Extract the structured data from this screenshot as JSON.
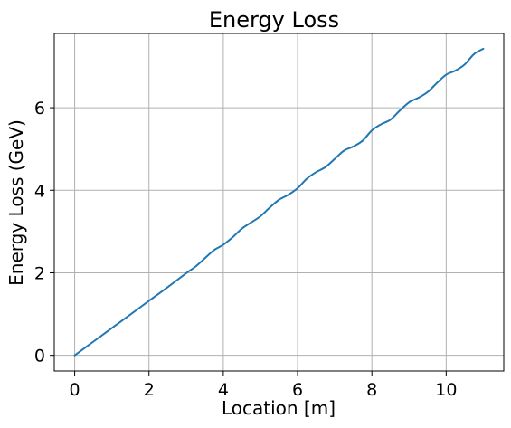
{
  "chart_data": {
    "type": "line",
    "title": "Energy Loss",
    "xlabel": "Location [m]",
    "ylabel": "Energy Loss (GeV)",
    "xlim": [
      -0.55,
      11.55
    ],
    "ylim": [
      -0.38,
      7.8
    ],
    "xticks": [
      0,
      2,
      4,
      6,
      8,
      10
    ],
    "yticks": [
      0,
      2,
      4,
      6
    ],
    "xtick_labels": [
      "0",
      "2",
      "4",
      "6",
      "8",
      "10"
    ],
    "ytick_labels": [
      "0",
      "2",
      "4",
      "6"
    ],
    "grid": true,
    "series": [
      {
        "color": "#1f77b4",
        "x": [
          0,
          0.5,
          1,
          1.5,
          2,
          2.5,
          3,
          3.25,
          3.5,
          3.75,
          4,
          4.25,
          4.5,
          4.75,
          5,
          5.25,
          5.5,
          5.75,
          6,
          6.25,
          6.5,
          6.75,
          7,
          7.25,
          7.5,
          7.75,
          8,
          8.25,
          8.5,
          8.75,
          9,
          9.25,
          9.5,
          9.75,
          10,
          10.25,
          10.5,
          10.75,
          11
        ],
        "y": [
          0,
          0.33,
          0.66,
          0.99,
          1.32,
          1.65,
          1.99,
          2.15,
          2.35,
          2.55,
          2.68,
          2.86,
          3.07,
          3.22,
          3.37,
          3.58,
          3.77,
          3.89,
          4.05,
          4.28,
          4.44,
          4.56,
          4.76,
          4.96,
          5.06,
          5.2,
          5.45,
          5.6,
          5.71,
          5.93,
          6.13,
          6.24,
          6.38,
          6.6,
          6.8,
          6.9,
          7.05,
          7.3,
          7.43
        ]
      }
    ]
  }
}
